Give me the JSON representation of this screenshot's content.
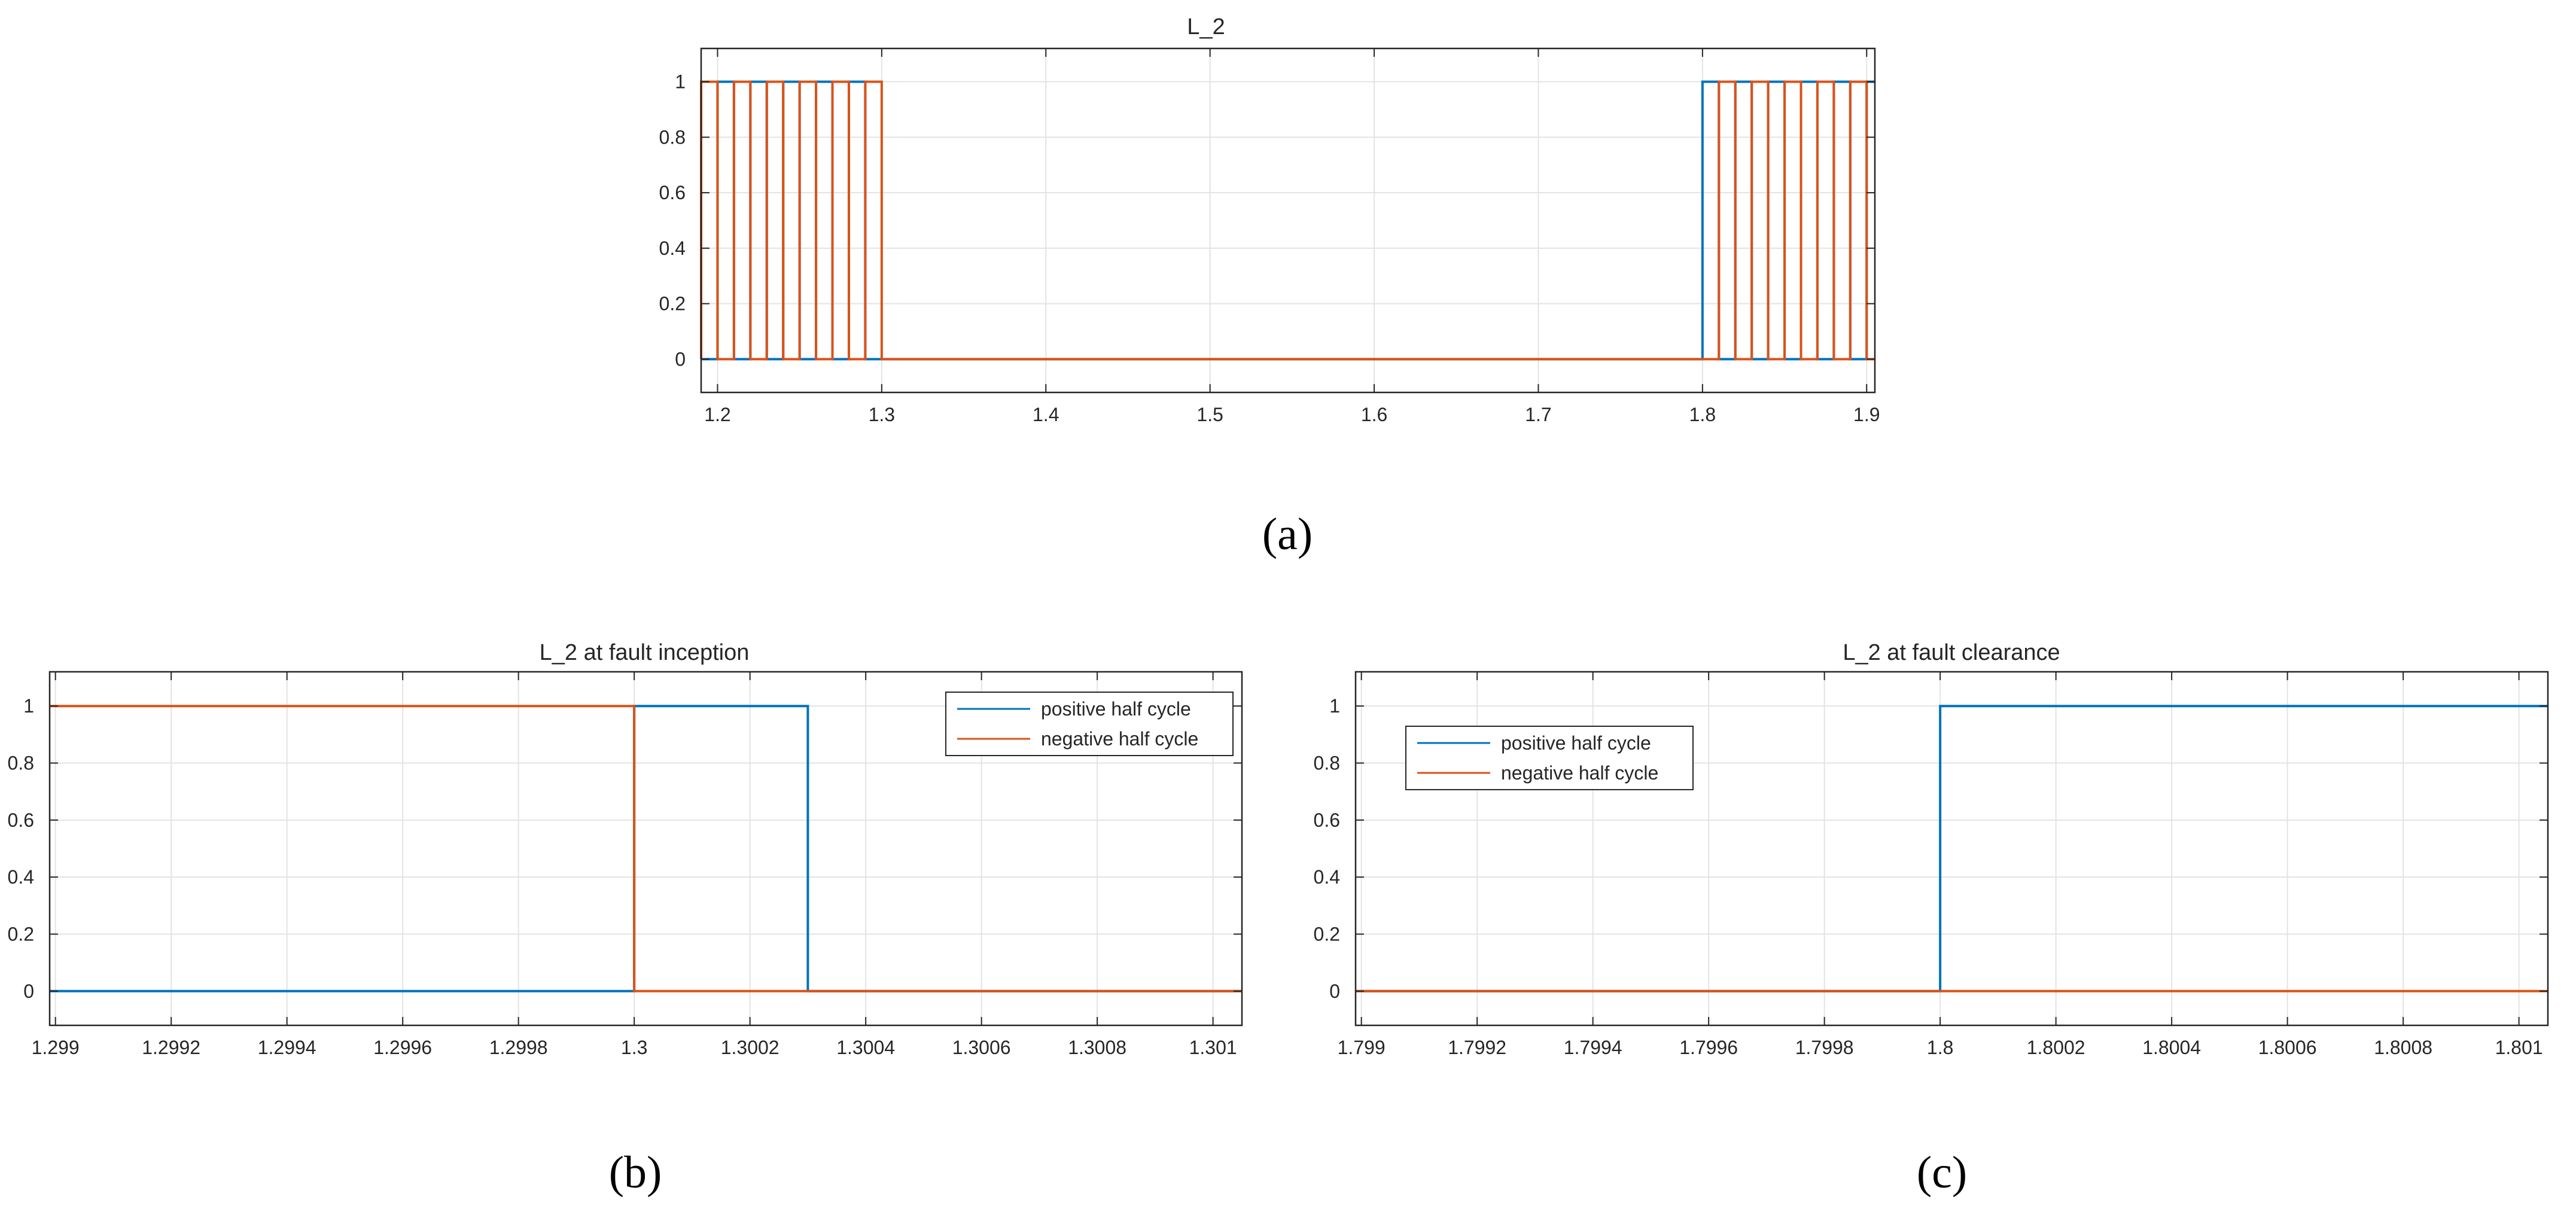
{
  "colors": {
    "positive": "#0072BD",
    "negative": "#D95319",
    "grid": "#e3e3e3",
    "axis": "#262626"
  },
  "chart_data": [
    {
      "id": "a",
      "type": "line",
      "step": true,
      "title": "L_2",
      "caption": "(a)",
      "xlabel": "",
      "ylabel": "",
      "xlim": [
        1.19,
        1.905
      ],
      "ylim": [
        -0.12,
        1.12
      ],
      "xticks": [
        1.2,
        1.3,
        1.4,
        1.5,
        1.6,
        1.7,
        1.8,
        1.9
      ],
      "xtick_labels": [
        "1.2",
        "1.3",
        "1.4",
        "1.5",
        "1.6",
        "1.7",
        "1.8",
        "1.9"
      ],
      "yticks": [
        0,
        0.2,
        0.4,
        0.6,
        0.8,
        1
      ],
      "ytick_labels": [
        "0",
        "0.2",
        "0.4",
        "0.6",
        "0.8",
        "1"
      ],
      "grid": true,
      "legend": null,
      "series": [
        {
          "name": "positive half cycle",
          "color_key": "positive",
          "x": [
            1.19,
            1.2,
            1.2,
            1.21,
            1.21,
            1.22,
            1.22,
            1.23,
            1.23,
            1.24,
            1.24,
            1.25,
            1.25,
            1.26,
            1.26,
            1.27,
            1.27,
            1.28,
            1.28,
            1.29,
            1.29,
            1.3,
            1.3,
            1.8,
            1.8,
            1.81,
            1.81,
            1.82,
            1.82,
            1.83,
            1.83,
            1.84,
            1.84,
            1.85,
            1.85,
            1.86,
            1.86,
            1.87,
            1.87,
            1.88,
            1.88,
            1.89,
            1.89,
            1.9,
            1.9,
            1.905
          ],
          "y": [
            0,
            0,
            1,
            1,
            0,
            0,
            1,
            1,
            0,
            0,
            1,
            1,
            0,
            0,
            1,
            1,
            0,
            0,
            1,
            1,
            0,
            0,
            0,
            0,
            1,
            1,
            0,
            0,
            1,
            1,
            0,
            0,
            1,
            1,
            0,
            0,
            1,
            1,
            0,
            0,
            1,
            1,
            0,
            0,
            1,
            1
          ]
        },
        {
          "name": "negative half cycle",
          "color_key": "negative",
          "x": [
            1.19,
            1.19,
            1.2,
            1.2,
            1.21,
            1.21,
            1.22,
            1.22,
            1.23,
            1.23,
            1.24,
            1.24,
            1.25,
            1.25,
            1.26,
            1.26,
            1.27,
            1.27,
            1.28,
            1.28,
            1.29,
            1.29,
            1.3,
            1.3,
            1.8,
            1.8,
            1.81,
            1.81,
            1.82,
            1.82,
            1.83,
            1.83,
            1.84,
            1.84,
            1.85,
            1.85,
            1.86,
            1.86,
            1.87,
            1.87,
            1.88,
            1.88,
            1.89,
            1.89,
            1.9,
            1.9,
            1.905
          ],
          "y": [
            0,
            1,
            1,
            0,
            0,
            1,
            1,
            0,
            0,
            1,
            1,
            0,
            0,
            1,
            1,
            0,
            0,
            1,
            1,
            0,
            0,
            1,
            1,
            0,
            0,
            0,
            0,
            1,
            1,
            0,
            0,
            1,
            1,
            0,
            0,
            1,
            1,
            0,
            0,
            1,
            1,
            0,
            0,
            1,
            1,
            0,
            0
          ]
        }
      ]
    },
    {
      "id": "b",
      "type": "line",
      "step": true,
      "title": "L_2 at fault inception",
      "caption": "(b)",
      "xlabel": "",
      "ylabel": "",
      "xlim": [
        1.29899,
        1.30105
      ],
      "ylim": [
        -0.12,
        1.12
      ],
      "xticks": [
        1.299,
        1.2992,
        1.2994,
        1.2996,
        1.2998,
        1.3,
        1.3002,
        1.3004,
        1.3006,
        1.3008,
        1.301
      ],
      "xtick_labels": [
        "1.299",
        "1.2992",
        "1.2994",
        "1.2996",
        "1.2998",
        "1.3",
        "1.3002",
        "1.3004",
        "1.3006",
        "1.3008",
        "1.301"
      ],
      "yticks": [
        0,
        0.2,
        0.4,
        0.6,
        0.8,
        1
      ],
      "ytick_labels": [
        "0",
        "0.2",
        "0.4",
        "0.6",
        "0.8",
        "1"
      ],
      "grid": true,
      "legend": "top-right",
      "series": [
        {
          "name": "positive half cycle",
          "color_key": "positive",
          "x": [
            1.29899,
            1.3,
            1.3,
            1.3003,
            1.3003,
            1.30105
          ],
          "y": [
            0,
            0,
            1,
            1,
            0,
            0
          ]
        },
        {
          "name": "negative half cycle",
          "color_key": "negative",
          "x": [
            1.29899,
            1.3,
            1.3,
            1.30105
          ],
          "y": [
            1,
            1,
            0,
            0
          ]
        }
      ]
    },
    {
      "id": "c",
      "type": "line",
      "step": true,
      "title": "L_2 at fault clearance",
      "caption": "(c)",
      "xlabel": "",
      "ylabel": "",
      "xlim": [
        1.79899,
        1.80105
      ],
      "ylim": [
        -0.12,
        1.12
      ],
      "xticks": [
        1.799,
        1.7992,
        1.7994,
        1.7996,
        1.7998,
        1.8,
        1.8002,
        1.8004,
        1.8006,
        1.8008,
        1.801
      ],
      "xtick_labels": [
        "1.799",
        "1.7992",
        "1.7994",
        "1.7996",
        "1.7998",
        "1.8",
        "1.8002",
        "1.8004",
        "1.8006",
        "1.8008",
        "1.801"
      ],
      "yticks": [
        0,
        0.2,
        0.4,
        0.6,
        0.8,
        1
      ],
      "ytick_labels": [
        "0",
        "0.2",
        "0.4",
        "0.6",
        "0.8",
        "1"
      ],
      "grid": true,
      "legend": "top-left",
      "series": [
        {
          "name": "positive half cycle",
          "color_key": "positive",
          "x": [
            1.79899,
            1.8,
            1.8,
            1.80105
          ],
          "y": [
            0,
            0,
            1,
            1
          ]
        },
        {
          "name": "negative half cycle",
          "color_key": "negative",
          "x": [
            1.79899,
            1.80105
          ],
          "y": [
            0,
            0
          ]
        }
      ]
    }
  ]
}
